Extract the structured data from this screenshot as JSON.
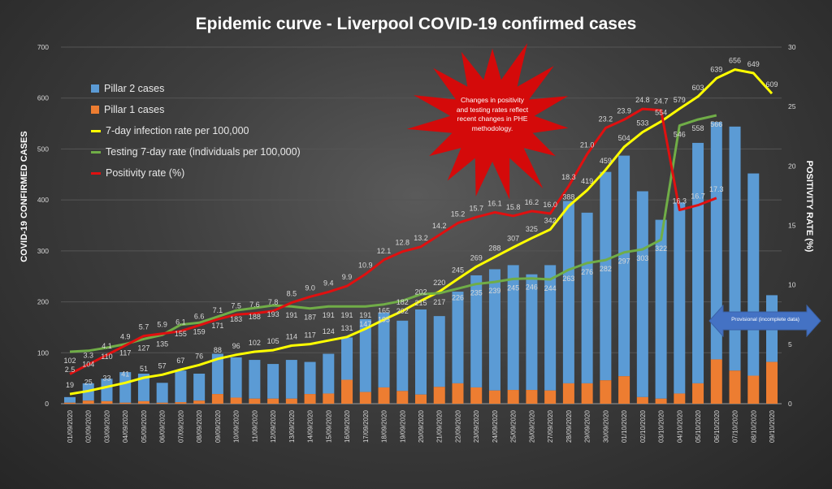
{
  "chart_data": {
    "type": "bar",
    "title": "Epidemic curve - Liverpool COVID-19 confirmed cases",
    "ylabel": "COVID-19 CONFIRMED CASES",
    "y2label": "POSITIVITY RATE (%)",
    "ylim": [
      0,
      700
    ],
    "y2lim": [
      0,
      30
    ],
    "yticks": [
      0,
      100,
      200,
      300,
      400,
      500,
      600,
      700
    ],
    "y2ticks": [
      0,
      5,
      10,
      15,
      20,
      25,
      30
    ],
    "grid": true,
    "legend_position": "top-left",
    "categories": [
      "01/09/2020",
      "02/09/2020",
      "03/09/2020",
      "04/09/2020",
      "05/09/2020",
      "06/09/2020",
      "07/09/2020",
      "08/09/2020",
      "09/09/2020",
      "10/09/2020",
      "11/09/2020",
      "12/09/2020",
      "13/09/2020",
      "14/09/2020",
      "15/09/2020",
      "16/09/2020",
      "17/09/2020",
      "18/09/2020",
      "19/09/2020",
      "20/09/2020",
      "21/09/2020",
      "22/09/2020",
      "23/09/2020",
      "24/09/2020",
      "25/09/2020",
      "26/09/2020",
      "27/09/2020",
      "28/09/2020",
      "29/09/2020",
      "30/09/2020",
      "01/10/2020",
      "02/10/2020",
      "03/10/2020",
      "04/10/2020",
      "05/10/2020",
      "06/10/2020",
      "07/10/2020",
      "08/10/2020",
      "09/10/2020"
    ],
    "series": [
      {
        "name": "Pillar 2 cases",
        "kind": "bar-stacked",
        "axis": "left",
        "color": "#5b9bd5",
        "values": [
          11,
          34,
          44,
          60,
          54,
          39,
          62,
          53,
          79,
          79,
          76,
          68,
          76,
          63,
          78,
          83,
          143,
          147,
          138,
          167,
          139,
          180,
          220,
          238,
          245,
          227,
          246,
          358,
          335,
          409,
          433,
          404,
          351,
          375,
          472,
          466,
          479,
          397,
          131
        ]
      },
      {
        "name": "Pillar 1 cases",
        "kind": "bar-stacked",
        "axis": "left",
        "color": "#ed7d31",
        "values": [
          2,
          6,
          5,
          2,
          5,
          2,
          3,
          6,
          19,
          12,
          10,
          10,
          10,
          19,
          20,
          47,
          23,
          32,
          25,
          18,
          33,
          40,
          32,
          26,
          27,
          27,
          26,
          40,
          40,
          46,
          54,
          13,
          10,
          20,
          40,
          87,
          65,
          55,
          82
        ]
      },
      {
        "name": "7-day infection rate per 100,000",
        "kind": "line",
        "axis": "left",
        "color": "#ffff00",
        "values": [
          19,
          25,
          33,
          41,
          51,
          57,
          67,
          76,
          88,
          96,
          102,
          105,
          114,
          117,
          124,
          131,
          147,
          165,
          182,
          202,
          220,
          245,
          269,
          288,
          307,
          325,
          342,
          388,
          419,
          459,
          504,
          533,
          554,
          579,
          603,
          639,
          656,
          649,
          609
        ]
      },
      {
        "name": "Testing 7-day rate (individuals per 100,000)",
        "kind": "line",
        "axis": "left",
        "color": "#70ad47",
        "values": [
          102,
          104,
          110,
          117,
          127,
          135,
          155,
          159,
          171,
          183,
          188,
          193,
          191,
          187,
          191,
          191,
          191,
          195,
          202,
          215,
          217,
          226,
          235,
          239,
          245,
          246,
          244,
          263,
          276,
          282,
          297,
          303,
          322,
          546,
          558,
          566,
          null,
          null,
          null
        ]
      },
      {
        "name": "Positivity rate (%)",
        "kind": "line",
        "axis": "right",
        "color": "#e01010",
        "values": [
          2.5,
          3.3,
          4.1,
          4.9,
          5.7,
          5.9,
          6.1,
          6.6,
          7.1,
          7.5,
          7.6,
          7.8,
          8.5,
          9.0,
          9.4,
          9.9,
          10.9,
          12.1,
          12.8,
          13.2,
          14.2,
          15.2,
          15.7,
          16.1,
          15.8,
          16.2,
          16.0,
          18.3,
          21.0,
          23.2,
          23.9,
          24.8,
          24.7,
          16.3,
          16.7,
          17.3,
          null,
          null,
          null
        ]
      }
    ],
    "annotations": [
      "Changes in positivity and testing rates reflect recent changes in PHE methodology.",
      "Provisional (incomplete data)"
    ]
  },
  "legend": [
    "Pillar 2 cases",
    "Pillar 1 cases",
    "7-day infection rate per 100,000",
    "Testing 7-day rate (individuals per 100,000)",
    "Positivity rate (%)"
  ],
  "callout_text": "Changes in positivity and testing rates reflect recent changes in PHE methodology.",
  "provisional_text": "Provisional (incomplete data)",
  "colors": {
    "callout": "#d40a0a",
    "arrow": "#4472c4"
  }
}
